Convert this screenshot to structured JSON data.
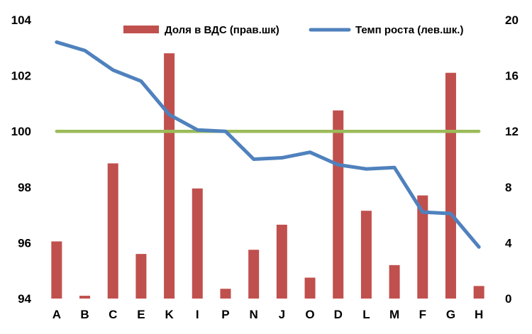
{
  "chart_data": {
    "type": "bar+line",
    "categories": [
      "A",
      "B",
      "C",
      "E",
      "K",
      "I",
      "P",
      "N",
      "J",
      "O",
      "D",
      "L",
      "M",
      "F",
      "G",
      "H"
    ],
    "series": [
      {
        "name": "Доля в ВДС (прав.шк)",
        "type": "bar",
        "axis": "right",
        "color": "#c0504d",
        "values": [
          4.1,
          0.2,
          9.7,
          3.2,
          17.6,
          7.9,
          0.7,
          3.5,
          5.3,
          1.5,
          13.5,
          6.3,
          2.4,
          7.4,
          16.2,
          0.9
        ]
      },
      {
        "name": "Темп роста (лев.шк.)",
        "type": "line",
        "axis": "left",
        "color": "#4f81bd",
        "values": [
          103.2,
          102.9,
          102.2,
          101.8,
          100.6,
          100.05,
          100.0,
          99.0,
          99.05,
          99.25,
          98.8,
          98.65,
          98.7,
          97.1,
          97.05,
          95.85
        ]
      }
    ],
    "reference_line": {
      "value": 100,
      "axis": "left",
      "color": "#9bbb59"
    },
    "y_left": {
      "min": 94,
      "max": 104,
      "ticks": [
        "94",
        "96",
        "98",
        "100",
        "102",
        "104"
      ]
    },
    "y_right": {
      "min": 0,
      "max": 20,
      "ticks": [
        "0",
        "4",
        "8",
        "12",
        "16",
        "20"
      ]
    },
    "legend_position": "top",
    "grid": false
  }
}
